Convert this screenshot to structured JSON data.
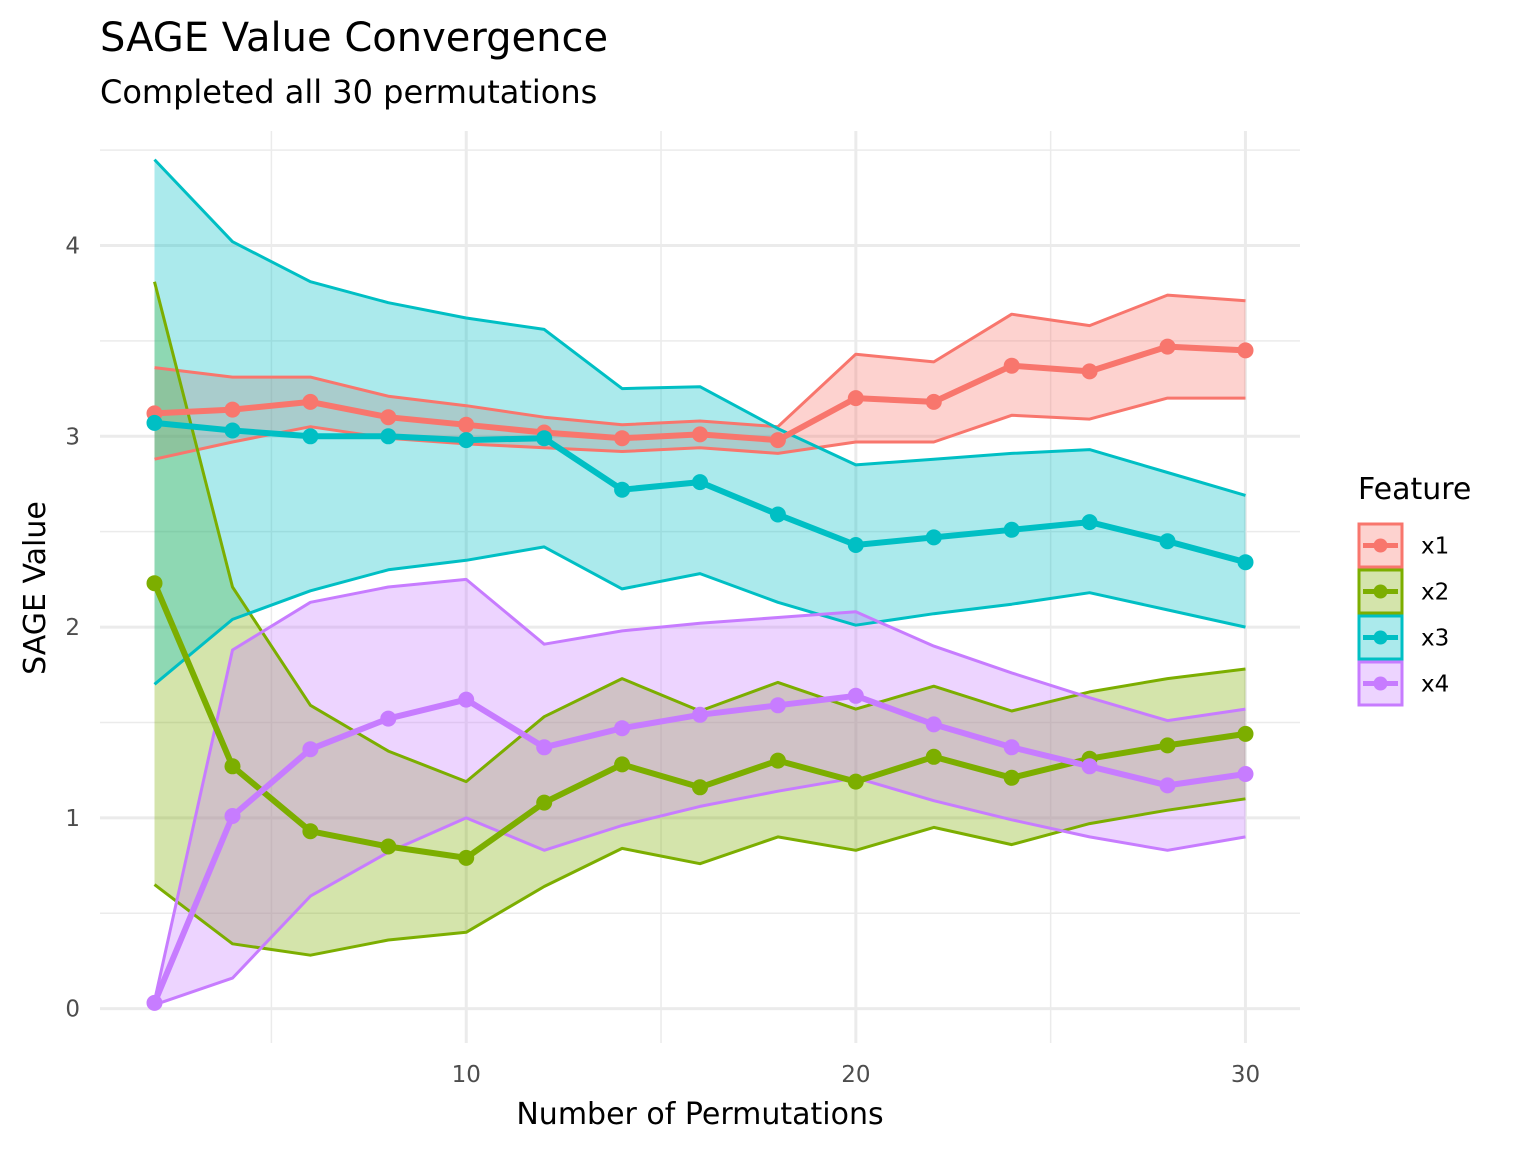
{
  "chart_data": {
    "type": "line",
    "title": "SAGE Value Convergence",
    "subtitle": "Completed all 30 permutations",
    "xlabel": "Number of Permutations",
    "ylabel": "SAGE Value",
    "xlim": [
      0.6,
      31.4
    ],
    "ylim": [
      -0.18,
      4.6
    ],
    "x_ticks": [
      10,
      20,
      30
    ],
    "y_ticks": [
      0,
      1,
      2,
      3,
      4
    ],
    "grid": true,
    "legend": {
      "title": "Feature",
      "position": "right"
    },
    "x": [
      2,
      4,
      6,
      8,
      10,
      12,
      14,
      16,
      18,
      20,
      22,
      24,
      26,
      28,
      30
    ],
    "series": [
      {
        "name": "x1",
        "color": "#F8766D",
        "values": [
          3.12,
          3.14,
          3.18,
          3.1,
          3.06,
          3.02,
          2.99,
          3.01,
          2.98,
          3.2,
          3.18,
          3.37,
          3.34,
          3.47,
          3.45
        ],
        "upper": [
          3.36,
          3.31,
          3.31,
          3.21,
          3.16,
          3.1,
          3.06,
          3.08,
          3.05,
          3.43,
          3.39,
          3.64,
          3.58,
          3.74,
          3.71
        ],
        "lower": [
          2.88,
          2.97,
          3.05,
          2.99,
          2.96,
          2.94,
          2.92,
          2.94,
          2.91,
          2.97,
          2.97,
          3.11,
          3.09,
          3.2,
          3.2
        ]
      },
      {
        "name": "x2",
        "color": "#7CAE00",
        "values": [
          2.23,
          1.27,
          0.93,
          0.85,
          0.79,
          1.08,
          1.28,
          1.16,
          1.3,
          1.19,
          1.32,
          1.21,
          1.31,
          1.38,
          1.44
        ],
        "upper": [
          3.81,
          2.21,
          1.59,
          1.35,
          1.19,
          1.53,
          1.73,
          1.56,
          1.71,
          1.57,
          1.69,
          1.56,
          1.66,
          1.73,
          1.78
        ],
        "lower": [
          0.65,
          0.34,
          0.28,
          0.36,
          0.4,
          0.64,
          0.84,
          0.76,
          0.9,
          0.83,
          0.95,
          0.86,
          0.97,
          1.04,
          1.1
        ]
      },
      {
        "name": "x3",
        "color": "#00BFC4",
        "values": [
          3.07,
          3.03,
          3.0,
          3.0,
          2.98,
          2.99,
          2.72,
          2.76,
          2.59,
          2.43,
          2.47,
          2.51,
          2.55,
          2.45,
          2.34
        ],
        "upper": [
          4.45,
          4.02,
          3.81,
          3.7,
          3.62,
          3.56,
          3.25,
          3.26,
          3.04,
          2.85,
          2.88,
          2.91,
          2.93,
          2.81,
          2.69
        ],
        "lower": [
          1.7,
          2.04,
          2.19,
          2.3,
          2.35,
          2.42,
          2.2,
          2.28,
          2.13,
          2.01,
          2.07,
          2.12,
          2.18,
          2.09,
          2.0
        ]
      },
      {
        "name": "x4",
        "color": "#C77CFF",
        "values": [
          0.03,
          1.01,
          1.36,
          1.52,
          1.62,
          1.37,
          1.47,
          1.54,
          1.59,
          1.64,
          1.49,
          1.37,
          1.27,
          1.17,
          1.23
        ],
        "upper": [
          0.04,
          1.88,
          2.13,
          2.21,
          2.25,
          1.91,
          1.98,
          2.02,
          2.05,
          2.08,
          1.9,
          1.76,
          1.63,
          1.51,
          1.57
        ],
        "lower": [
          0.02,
          0.16,
          0.59,
          0.82,
          1.0,
          0.83,
          0.96,
          1.06,
          1.14,
          1.21,
          1.09,
          0.99,
          0.9,
          0.83,
          0.9
        ]
      }
    ]
  }
}
